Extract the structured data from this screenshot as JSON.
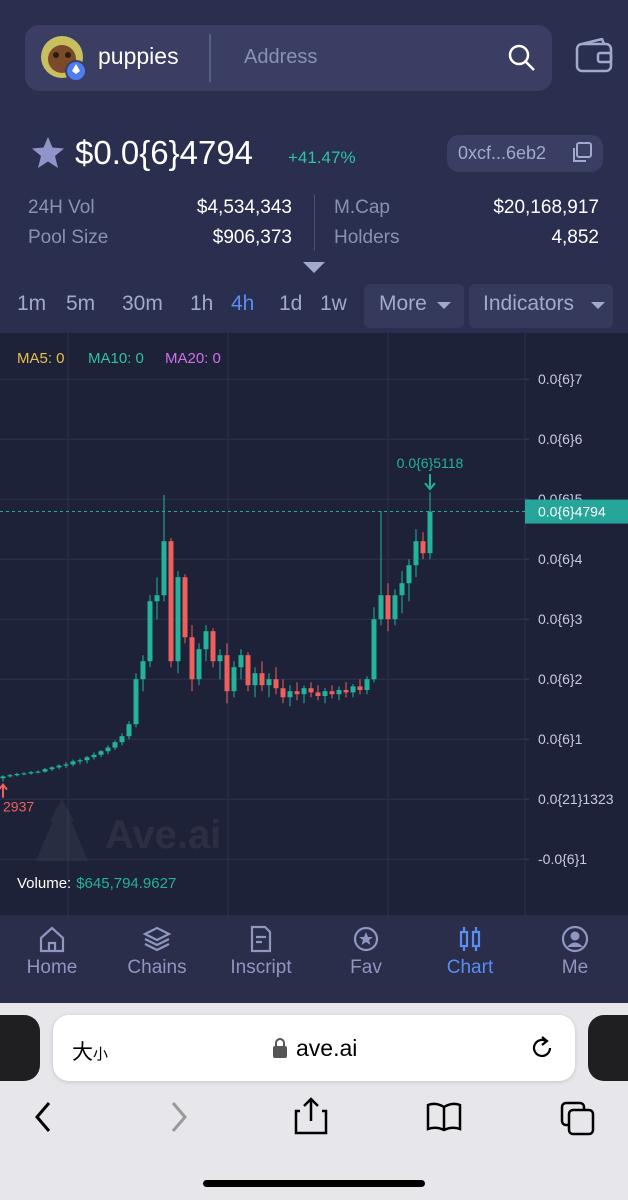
{
  "header": {
    "token_name": "puppies",
    "search_placeholder": "Address"
  },
  "token": {
    "price": "$0.0{6}4794",
    "change": "+41.47%",
    "address": "0xcf...6eb2"
  },
  "stats": [
    {
      "label": "24H Vol",
      "value": "$4,534,343"
    },
    {
      "label": "Pool Size",
      "value": "$906,373"
    },
    {
      "label": "M.Cap",
      "value": "$20,168,917"
    },
    {
      "label": "Holders",
      "value": "4,852"
    }
  ],
  "timeframes": [
    {
      "label": "1m",
      "active": false
    },
    {
      "label": "5m",
      "active": false
    },
    {
      "label": "30m",
      "active": false
    },
    {
      "label": "1h",
      "active": false
    },
    {
      "label": "4h",
      "active": true
    },
    {
      "label": "1d",
      "active": false
    },
    {
      "label": "1w",
      "active": false
    }
  ],
  "menus": [
    "More",
    "Indicators"
  ],
  "chart_data": {
    "type": "candlestick",
    "legend": [
      {
        "name": "MA5: 0",
        "color": "#e8c04a"
      },
      {
        "name": "MA10: 0",
        "color": "#2ec4a0"
      },
      {
        "name": "MA20: 0",
        "color": "#d070e8"
      }
    ],
    "up_color": "#23b39b",
    "down_color": "#ef5f5d",
    "ylim": [
      -1.93e-07,
      7.77e-07
    ],
    "yticks": [
      {
        "value": 7e-07,
        "label": "0.0{6}7"
      },
      {
        "value": 6e-07,
        "label": "0.0{6}6"
      },
      {
        "value": 5e-07,
        "label": "0.0{6}5"
      },
      {
        "value": 4e-07,
        "label": "0.0{6}4"
      },
      {
        "value": 3e-07,
        "label": "0.0{6}3"
      },
      {
        "value": 2e-07,
        "label": "0.0{6}2"
      },
      {
        "value": 1e-07,
        "label": "0.0{6}1"
      },
      {
        "value": 1.323e-22,
        "label": "0.0{21}1323"
      },
      {
        "value": -1e-07,
        "label": "-0.0{6}1"
      }
    ],
    "grid": true,
    "candles": [
      [
        3.5e-08,
        4e-08,
        2.937e-08,
        3.8e-08
      ],
      [
        3.8e-08,
        4.2e-08,
        3.6e-08,
        4e-08
      ],
      [
        4e-08,
        4.4e-08,
        3.8e-08,
        4.2e-08
      ],
      [
        4.2e-08,
        4.5e-08,
        4e-08,
        4.3e-08
      ],
      [
        4.3e-08,
        4.7e-08,
        4.1e-08,
        4.5e-08
      ],
      [
        4.5e-08,
        4.8e-08,
        4.3e-08,
        4.6e-08
      ],
      [
        4.6e-08,
        5.2e-08,
        4.4e-08,
        5e-08
      ],
      [
        5e-08,
        5.5e-08,
        4.7e-08,
        5.3e-08
      ],
      [
        5.3e-08,
        5.8e-08,
        5e-08,
        5.6e-08
      ],
      [
        5.6e-08,
        6.2e-08,
        5.2e-08,
        5.8e-08
      ],
      [
        5.8e-08,
        6.6e-08,
        5.5e-08,
        6.3e-08
      ],
      [
        6.3e-08,
        6.8e-08,
        5.8e-08,
        6.5e-08
      ],
      [
        6.5e-08,
        7.2e-08,
        6e-08,
        7e-08
      ],
      [
        7e-08,
        7.8e-08,
        6.6e-08,
        7.4e-08
      ],
      [
        7.4e-08,
        8.2e-08,
        7e-08,
        8e-08
      ],
      [
        8e-08,
        9e-08,
        7.5e-08,
        8.6e-08
      ],
      [
        8.6e-08,
        9.8e-08,
        8.2e-08,
        9.5e-08
      ],
      [
        9.5e-08,
        1.1e-07,
        9e-08,
        1.05e-07
      ],
      [
        1.05e-07,
        1.3e-07,
        1e-07,
        1.25e-07
      ],
      [
        1.25e-07,
        2.1e-07,
        1.2e-07,
        2e-07
      ],
      [
        2e-07,
        2.4e-07,
        1.8e-07,
        2.3e-07
      ],
      [
        2.3e-07,
        3.4e-07,
        2.2e-07,
        3.3e-07
      ],
      [
        3.3e-07,
        3.7e-07,
        3e-07,
        3.4e-07
      ],
      [
        3.4e-07,
        5.07e-07,
        3.3e-07,
        4.3e-07
      ],
      [
        4.3e-07,
        4.35e-07,
        2.2e-07,
        2.3e-07
      ],
      [
        2.3e-07,
        3.8e-07,
        2.1e-07,
        3.7e-07
      ],
      [
        3.7e-07,
        3.75e-07,
        2.6e-07,
        2.7e-07
      ],
      [
        2.7e-07,
        2.9e-07,
        1.8e-07,
        2e-07
      ],
      [
        2e-07,
        2.6e-07,
        1.9e-07,
        2.5e-07
      ],
      [
        2.5e-07,
        2.9e-07,
        2.3e-07,
        2.8e-07
      ],
      [
        2.8e-07,
        2.85e-07,
        2.2e-07,
        2.3e-07
      ],
      [
        2.3e-07,
        2.5e-07,
        2e-07,
        2.4e-07
      ],
      [
        2.4e-07,
        2.6e-07,
        1.6e-07,
        1.8e-07
      ],
      [
        1.8e-07,
        2.3e-07,
        1.7e-07,
        2.2e-07
      ],
      [
        2.2e-07,
        2.5e-07,
        2e-07,
        2.4e-07
      ],
      [
        2.4e-07,
        2.45e-07,
        1.8e-07,
        1.9e-07
      ],
      [
        1.9e-07,
        2.2e-07,
        1.7e-07,
        2.1e-07
      ],
      [
        2.1e-07,
        2.3e-07,
        1.8e-07,
        1.9e-07
      ],
      [
        1.9e-07,
        2.1e-07,
        1.7e-07,
        2e-07
      ],
      [
        2e-07,
        2.2e-07,
        1.75e-07,
        1.85e-07
      ],
      [
        1.85e-07,
        2e-07,
        1.6e-07,
        1.7e-07
      ],
      [
        1.7e-07,
        1.9e-07,
        1.55e-07,
        1.8e-07
      ],
      [
        1.8e-07,
        1.95e-07,
        1.65e-07,
        1.75e-07
      ],
      [
        1.75e-07,
        1.9e-07,
        1.6e-07,
        1.85e-07
      ],
      [
        1.85e-07,
        1.95e-07,
        1.7e-07,
        1.78e-07
      ],
      [
        1.78e-07,
        1.9e-07,
        1.65e-07,
        1.72e-07
      ],
      [
        1.72e-07,
        1.85e-07,
        1.6e-07,
        1.8e-07
      ],
      [
        1.8e-07,
        1.9e-07,
        1.68e-07,
        1.75e-07
      ],
      [
        1.75e-07,
        1.88e-07,
        1.65e-07,
        1.82e-07
      ],
      [
        1.82e-07,
        1.95e-07,
        1.7e-07,
        1.78e-07
      ],
      [
        1.78e-07,
        1.92e-07,
        1.7e-07,
        1.88e-07
      ],
      [
        1.88e-07,
        2e-07,
        1.75e-07,
        1.82e-07
      ],
      [
        1.82e-07,
        2.05e-07,
        1.75e-07,
        2e-07
      ],
      [
        2e-07,
        3.2e-07,
        1.95e-07,
        3e-07
      ],
      [
        3e-07,
        4.8e-07,
        2.9e-07,
        3.4e-07
      ],
      [
        3.4e-07,
        3.6e-07,
        2.8e-07,
        3e-07
      ],
      [
        3e-07,
        3.5e-07,
        2.9e-07,
        3.4e-07
      ],
      [
        3.4e-07,
        3.8e-07,
        3.1e-07,
        3.6e-07
      ],
      [
        3.6e-07,
        4e-07,
        3.3e-07,
        3.9e-07
      ],
      [
        3.9e-07,
        4.5e-07,
        3.7e-07,
        4.3e-07
      ],
      [
        4.3e-07,
        4.45e-07,
        4e-07,
        4.1e-07
      ],
      [
        4.1e-07,
        5.118e-07,
        4e-07,
        4.794e-07
      ]
    ],
    "current_price": {
      "value": 4.794e-07,
      "label": "0.0{6}4794",
      "color": "#26a69a"
    },
    "high_marker": {
      "value": 5.118e-07,
      "label": "0.0{6}5118"
    },
    "low_marker": {
      "value": 2.937e-08,
      "label": "2937"
    },
    "volume": {
      "label": "Volume:",
      "value": "$645,794.9627"
    },
    "watermark": "Ave.ai"
  },
  "nav": [
    {
      "label": "Home",
      "active": false
    },
    {
      "label": "Chains",
      "active": false
    },
    {
      "label": "Inscript",
      "active": false
    },
    {
      "label": "Fav",
      "active": false
    },
    {
      "label": "Chart",
      "active": true
    },
    {
      "label": "Me",
      "active": false
    }
  ],
  "browser": {
    "text_size_large": "大",
    "text_size_small": "小",
    "url": "ave.ai"
  }
}
